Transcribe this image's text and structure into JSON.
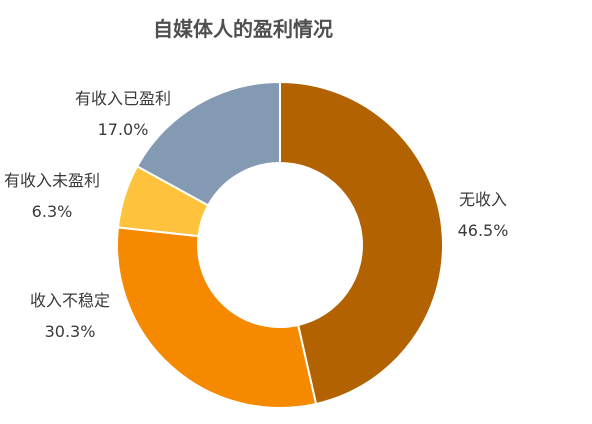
{
  "chart_data": {
    "type": "pie",
    "title": "自媒体人的盈利情况",
    "slices": [
      {
        "label": "无收入",
        "value": 46.5,
        "value_label": "46.5%",
        "color": "#b26200"
      },
      {
        "label": "收入不稳定",
        "value": 30.3,
        "value_label": "30.3%",
        "color": "#f58a00"
      },
      {
        "label": "有收入未盈利",
        "value": 6.3,
        "value_label": "6.3%",
        "color": "#ffc23d"
      },
      {
        "label": "有收入已盈利",
        "value": 17.0,
        "value_label": "17.0%",
        "color": "#8499b2"
      }
    ],
    "start_angle_deg": 0,
    "direction": "clockwise",
    "donut": true,
    "legend": "none"
  }
}
